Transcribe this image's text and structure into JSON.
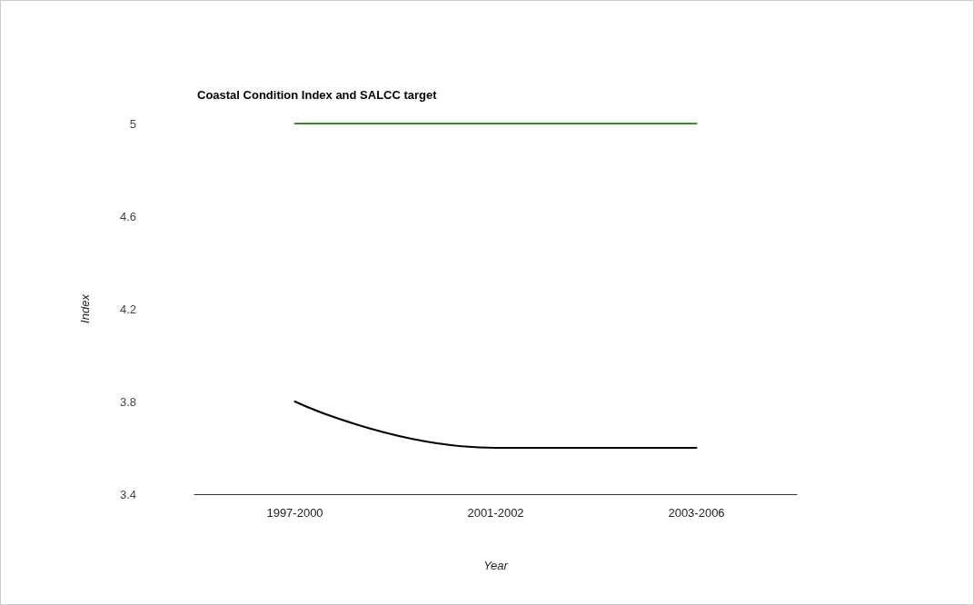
{
  "chart_data": {
    "type": "line",
    "title": "Coastal Condition Index and SALCC target",
    "xlabel": "Year",
    "ylabel": "Index",
    "categories": [
      "1997-2000",
      "2001-2002",
      "2003-2006"
    ],
    "series": [
      {
        "color": "#000000",
        "values": [
          3.8,
          3.6,
          3.6
        ]
      },
      {
        "color": "#3c8a2e",
        "values": [
          5,
          5,
          5
        ]
      }
    ],
    "ylim": [
      3.4,
      5
    ],
    "yticks": [
      3.4,
      3.8,
      4.2,
      4.6,
      5
    ],
    "grid": false,
    "legend": false,
    "marker": "none",
    "line_style": "solid"
  }
}
